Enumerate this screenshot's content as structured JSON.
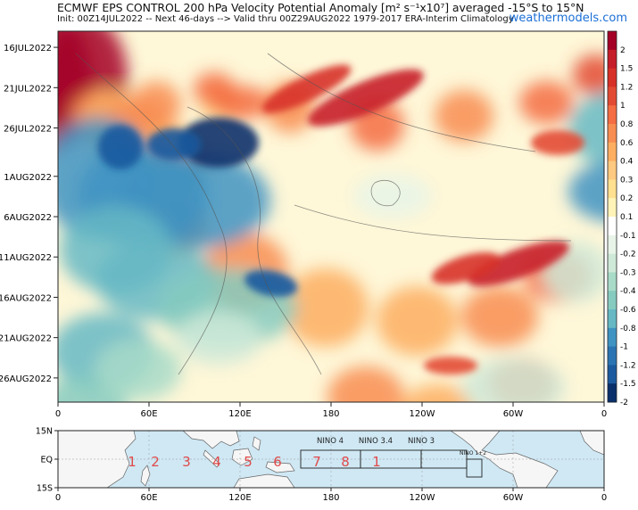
{
  "header": {
    "title": "ECMWF EPS CONTROL 200 hPa Velocity Potential Anomaly [m² s⁻¹x10⁷] averaged -15°S to 15°N",
    "subtitle": "Init: 00Z14JUL2022 -- Next 46-days --> Valid thru 00Z29AUG2022 1979-2017 ERA-Interim Climatology",
    "credit": "weathermodels.com"
  },
  "chart_data": [
    {
      "type": "heatmap",
      "title": "ECMWF EPS CONTROL 200 hPa Velocity Potential Anomaly [m² s⁻¹x10⁷] averaged -15°S to 15°N",
      "x_ticks": [
        "0",
        "60E",
        "120E",
        "180",
        "120W",
        "60W",
        "0"
      ],
      "x_tick_positions_deg": [
        0,
        60,
        120,
        180,
        240,
        300,
        360
      ],
      "y_ticks": [
        "16JUL2022",
        "21JUL2022",
        "26JUL2022",
        "1AUG2022",
        "6AUG2022",
        "11AUG2022",
        "16AUG2022",
        "21AUG2022",
        "26AUG2022"
      ],
      "y_tick_days": [
        2,
        7,
        12,
        18,
        23,
        28,
        33,
        38,
        43
      ],
      "xlim": [
        0,
        360
      ],
      "ylim_days": [
        0,
        46
      ],
      "colorbar": {
        "labels": [
          "2",
          "1.5",
          "1.2",
          "1",
          "0.8",
          "0.6",
          "0.4",
          "0.3",
          "0.2",
          "0.1",
          "-0.1",
          "-0.2",
          "-0.3",
          "-0.4",
          "-0.6",
          "-0.8",
          "-1",
          "-1.2",
          "-1.5",
          "-2"
        ],
        "colors": [
          "#a50026",
          "#c61d2a",
          "#d73027",
          "#e34a33",
          "#f46d43",
          "#f88d52",
          "#fdae61",
          "#fec980",
          "#fee090",
          "#fff3b8",
          "#ffffff",
          "#e8f4e8",
          "#cfe9d8",
          "#a8dbc8",
          "#86cbc0",
          "#66b9c4",
          "#3f93c2",
          "#2b74b3",
          "#1b5a9e",
          "#08306b"
        ]
      },
      "features": [
        {
          "name": "western-negative",
          "value": -1.8,
          "lon": 55,
          "day": 12
        },
        {
          "name": "positive-band-1",
          "value": 1.4,
          "lon": 165,
          "day": 8
        },
        {
          "name": "positive-band-2",
          "value": 1.2,
          "lon": 255,
          "day": 33
        },
        {
          "name": "indian-ocean-negative",
          "value": -1.2,
          "lon": 95,
          "day": 30
        }
      ]
    },
    {
      "type": "map",
      "lat_ticks": [
        "15N",
        "EQ",
        "15S"
      ],
      "lon_ticks": [
        "0",
        "60E",
        "120E",
        "180",
        "120W",
        "60W",
        "0"
      ],
      "region_labels": [
        "NINO 4",
        "NINO 3.4",
        "NINO 3",
        "NINO 1+2"
      ],
      "mjo_phases": [
        "1",
        "2",
        "3",
        "4",
        "5",
        "6",
        "7",
        "8",
        "1"
      ]
    }
  ]
}
